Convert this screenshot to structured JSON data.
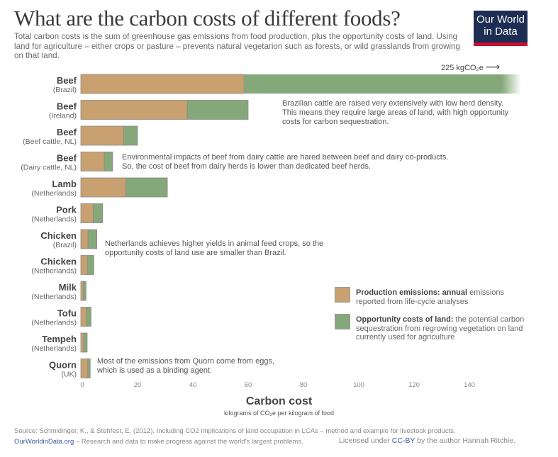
{
  "header": {
    "title": "What are the carbon costs of different foods?",
    "subtitle": "Total carbon costs is the sum of greenhouse gas emissions from food production, plus the opportunity costs of land. Using land for agriculture – either crops or pasture – prevents natural vegetarion such as forests, or wild grasslands from growing on that land.",
    "logo_line1": "Our World",
    "logo_line2": "in Data"
  },
  "colors": {
    "production": "#c9a06f",
    "opportunity": "#85a87a",
    "bar_border": "#8a8a8a",
    "logo_bg": "#1d2d53",
    "logo_accent": "#c8102e",
    "link": "#3b5aa8"
  },
  "chart_data": {
    "type": "bar",
    "orientation": "horizontal",
    "stacked": true,
    "title": "What are the carbon costs of different foods?",
    "xlabel": "Carbon cost",
    "xlabel_sub": "kilograms of CO₂e per kilogram of food",
    "ylabel": "",
    "xlim": [
      0,
      150
    ],
    "xticks": [
      0,
      20,
      40,
      60,
      80,
      100,
      120,
      140
    ],
    "grid": false,
    "legend_position": "right",
    "categories": [
      {
        "name": "Beef",
        "sub": "(Brazil)"
      },
      {
        "name": "Beef",
        "sub": "(Ireland)"
      },
      {
        "name": "Beef",
        "sub": "(Beef cattle, NL)"
      },
      {
        "name": "Beef",
        "sub": "(Dairy cattle, NL)"
      },
      {
        "name": "Lamb",
        "sub": "(Netherlands)"
      },
      {
        "name": "Pork",
        "sub": "(Netherlands)"
      },
      {
        "name": "Chicken",
        "sub": "(Brazil)"
      },
      {
        "name": "Chicken",
        "sub": "(Netherlands)"
      },
      {
        "name": "Milk",
        "sub": "(Netherlands)"
      },
      {
        "name": "Tofu",
        "sub": "(Netherlands)"
      },
      {
        "name": "Tempeh",
        "sub": "(Netherlands)"
      },
      {
        "name": "Quorn",
        "sub": "(UK)"
      }
    ],
    "series": [
      {
        "name": "Production emissions",
        "key": "production",
        "values": [
          59,
          38.5,
          15.5,
          8.5,
          16.3,
          4.5,
          2.6,
          2.4,
          0.9,
          2.0,
          1.0,
          2.5
        ]
      },
      {
        "name": "Opportunity costs of land",
        "key": "opportunity",
        "values": [
          166,
          22,
          5,
          3,
          15,
          3.4,
          3.2,
          2.3,
          1.0,
          1.7,
          1.3,
          0.9
        ]
      }
    ],
    "totals": [
      225,
      60.5,
      20.5,
      11.5,
      31.3,
      7.9,
      5.8,
      4.7,
      1.9,
      3.7,
      2.3,
      3.4
    ],
    "truncated": [
      true,
      false,
      false,
      false,
      false,
      false,
      false,
      false,
      false,
      false,
      false,
      false
    ],
    "max_annotation": "225 kgCO₂e",
    "annotations": [
      {
        "row": 1,
        "text_lines": [
          "Brazilian cattle are raised very extensively with low herd density.",
          "This means they require large areas of land, with high opportunity",
          "costs for carbon sequestration."
        ]
      },
      {
        "row": 3,
        "text_lines": [
          "Environmental impacts of beef from dairy cattle are hared between beef and dairy co-products.",
          "So, the cost of beef from dairy herds is lower than dedicated beef herds."
        ]
      },
      {
        "row": 6,
        "text_lines": [
          "Netherlands achieves higher yields in animal feed crops, so the",
          "opportunity costs of land use are smaller than Brazil."
        ]
      },
      {
        "row": 11,
        "text_lines": [
          "Most of the emissions from Quorn come from eggs,",
          "which is used as a binding agent."
        ]
      }
    ]
  },
  "legend": {
    "production_bold": "Production emissions: annual",
    "production_rest": " emissions reported from life-cycle analyses",
    "opportunity_bold": "Opportunity costs of land:",
    "opportunity_rest": " the potential carbon sequestration from regrowing vegetation on land currently used for agriculture"
  },
  "footer": {
    "source": "Source: Schmidinger, K., & Stehfest, E. (2012). Including CO2 implications of land occupation in LCAs – method and example for livestock products.",
    "site_link": "OurWorldinData.org",
    "site_rest": " – Research and data to make progress against the world's largest problems.",
    "license_pre": "Licensed under ",
    "license_link": "CC-BY",
    "license_post": " by the author Hannah Ritchie."
  }
}
